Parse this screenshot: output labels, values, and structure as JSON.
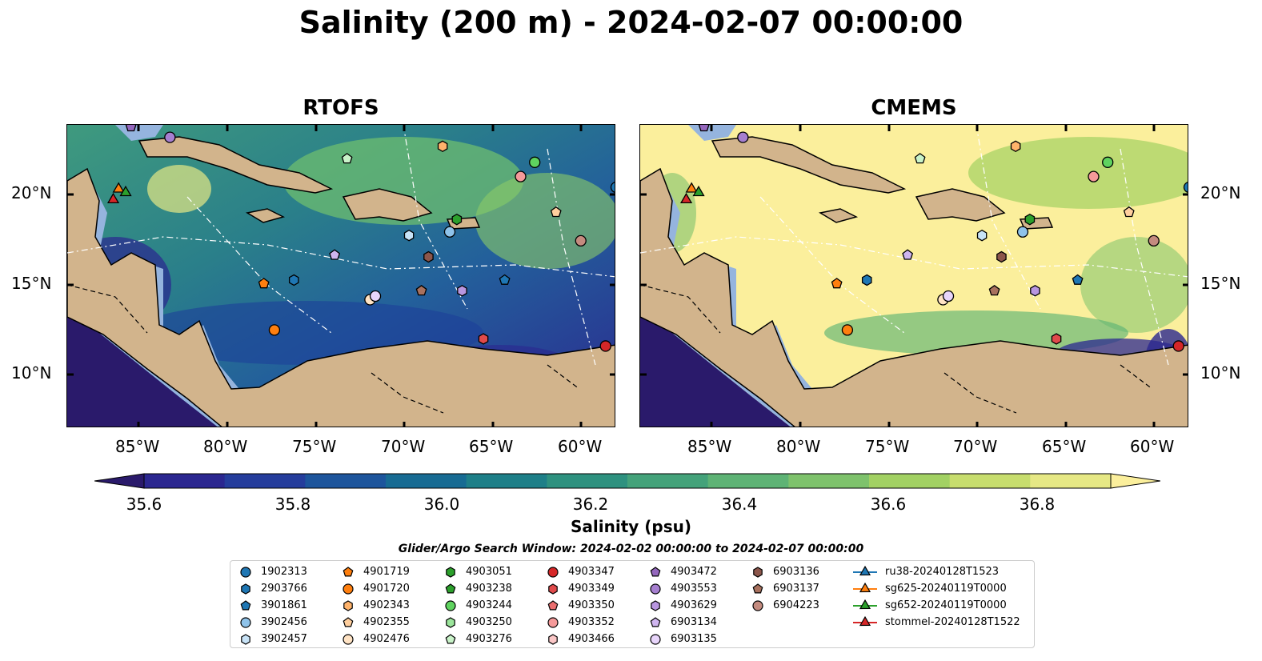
{
  "title": "Salinity (200 m) - 2024-02-07 00:00:00",
  "panels": [
    {
      "title": "RTOFS"
    },
    {
      "title": "CMEMS"
    }
  ],
  "x_ticks": [
    "85°W",
    "80°W",
    "75°W",
    "70°W",
    "65°W",
    "60°W"
  ],
  "y_ticks": [
    "20°N",
    "15°N",
    "10°N"
  ],
  "colorbar": {
    "label": "Salinity (psu)",
    "ticks": [
      "35.6",
      "35.8",
      "36.0",
      "36.2",
      "36.4",
      "36.6",
      "36.8"
    ],
    "colors": [
      "#2a1a6b",
      "#2b2790",
      "#253d9c",
      "#1d559c",
      "#176b93",
      "#1e7f88",
      "#2e917f",
      "#44a27a",
      "#5eb375",
      "#7ec26c",
      "#a2d163",
      "#c7dd6e",
      "#e6e885",
      "#fbef9c"
    ]
  },
  "search_window": "Glider/Argo Search Window: 2024-02-02 00:00:00 to 2024-02-07 00:00:00",
  "legend": [
    {
      "label": "1902313",
      "marker": "circle",
      "color": "#1f77b4"
    },
    {
      "label": "2903766",
      "marker": "hexagon",
      "color": "#1f77b4"
    },
    {
      "label": "3901861",
      "marker": "pentagon",
      "color": "#1f77b4"
    },
    {
      "label": "3902456",
      "marker": "circle",
      "color": "#8fc3ea"
    },
    {
      "label": "3902457",
      "marker": "hexagon",
      "color": "#c8e3f7"
    },
    {
      "label": "4901719",
      "marker": "pentagon",
      "color": "#ff7f0e"
    },
    {
      "label": "4901720",
      "marker": "circle",
      "color": "#ff7f0e"
    },
    {
      "label": "4902343",
      "marker": "hexagon",
      "color": "#ffb36b"
    },
    {
      "label": "4902355",
      "marker": "pentagon",
      "color": "#ffcf9e"
    },
    {
      "label": "4902476",
      "marker": "circle",
      "color": "#ffe3c4"
    },
    {
      "label": "4903051",
      "marker": "hexagon",
      "color": "#2ca02c"
    },
    {
      "label": "4903238",
      "marker": "pentagon",
      "color": "#2ca02c"
    },
    {
      "label": "4903244",
      "marker": "circle",
      "color": "#5fd35f"
    },
    {
      "label": "4903250",
      "marker": "hexagon",
      "color": "#9be59b"
    },
    {
      "label": "4903276",
      "marker": "pentagon",
      "color": "#c9f3c9"
    },
    {
      "label": "4903347",
      "marker": "circle",
      "color": "#d62728"
    },
    {
      "label": "4903349",
      "marker": "hexagon",
      "color": "#e04a4b"
    },
    {
      "label": "4903350",
      "marker": "pentagon",
      "color": "#ea6e6f"
    },
    {
      "label": "4903352",
      "marker": "circle",
      "color": "#f59a9a"
    },
    {
      "label": "4903466",
      "marker": "hexagon",
      "color": "#fbc7c7"
    },
    {
      "label": "4903472",
      "marker": "pentagon",
      "color": "#9467bd"
    },
    {
      "label": "4903553",
      "marker": "circle",
      "color": "#a67fd0"
    },
    {
      "label": "4903629",
      "marker": "hexagon",
      "color": "#b996e0"
    },
    {
      "label": "6903134",
      "marker": "pentagon",
      "color": "#cfb5ef"
    },
    {
      "label": "6903135",
      "marker": "circle",
      "color": "#e8d5fb"
    },
    {
      "label": "6903136",
      "marker": "hexagon",
      "color": "#8c564b"
    },
    {
      "label": "6903137",
      "marker": "pentagon",
      "color": "#a8715e"
    },
    {
      "label": "6904223",
      "marker": "circle",
      "color": "#c48b7f"
    },
    {
      "label": "ru38-20240128T1523",
      "marker": "triangle-line",
      "color": "#1f77b4"
    },
    {
      "label": "sg625-20240119T0000",
      "marker": "triangle-line",
      "color": "#ff7f0e"
    },
    {
      "label": "sg652-20240119T0000",
      "marker": "triangle-line",
      "color": "#2ca02c"
    },
    {
      "label": "stommel-20240128T1522",
      "marker": "triangle-line",
      "color": "#d62728"
    }
  ],
  "map_extent": {
    "lon": [
      -89,
      -58
    ],
    "lat": [
      7,
      24
    ]
  },
  "observations": [
    {
      "lon": -85.4,
      "lat": 23.9,
      "marker": "pentagon",
      "color": "#9467bd"
    },
    {
      "lon": -83.2,
      "lat": 23.3,
      "marker": "circle",
      "color": "#a67fd0"
    },
    {
      "lon": -73.2,
      "lat": 22.1,
      "marker": "pentagon",
      "color": "#c9f3c9"
    },
    {
      "lon": -67.8,
      "lat": 22.8,
      "marker": "hexagon",
      "color": "#ffb36b"
    },
    {
      "lon": -62.6,
      "lat": 21.9,
      "marker": "circle",
      "color": "#5fd35f"
    },
    {
      "lon": -63.4,
      "lat": 21.1,
      "marker": "circle",
      "color": "#f59a9a"
    },
    {
      "lon": -58.0,
      "lat": 20.5,
      "marker": "circle",
      "color": "#1f77b4"
    },
    {
      "lon": -61.4,
      "lat": 19.1,
      "marker": "pentagon",
      "color": "#ffcf9e"
    },
    {
      "lon": -67.0,
      "lat": 18.7,
      "marker": "hexagon",
      "color": "#2ca02c"
    },
    {
      "lon": -69.7,
      "lat": 17.8,
      "marker": "hexagon",
      "color": "#c8e3f7"
    },
    {
      "lon": -67.4,
      "lat": 18.0,
      "marker": "circle",
      "color": "#8fc3ea"
    },
    {
      "lon": -60.0,
      "lat": 17.5,
      "marker": "circle",
      "color": "#c48b7f"
    },
    {
      "lon": -73.9,
      "lat": 16.7,
      "marker": "pentagon",
      "color": "#cfb5ef"
    },
    {
      "lon": -68.6,
      "lat": 16.6,
      "marker": "hexagon",
      "color": "#8c564b"
    },
    {
      "lon": -77.9,
      "lat": 15.1,
      "marker": "pentagon",
      "color": "#ff7f0e"
    },
    {
      "lon": -76.2,
      "lat": 15.3,
      "marker": "hexagon",
      "color": "#1f77b4"
    },
    {
      "lon": -64.3,
      "lat": 15.3,
      "marker": "pentagon",
      "color": "#1f77b4"
    },
    {
      "lon": -69.0,
      "lat": 14.7,
      "marker": "pentagon",
      "color": "#a8715e"
    },
    {
      "lon": -66.7,
      "lat": 14.7,
      "marker": "hexagon",
      "color": "#b996e0"
    },
    {
      "lon": -71.9,
      "lat": 14.2,
      "marker": "circle",
      "color": "#ffe3c4"
    },
    {
      "lon": -71.6,
      "lat": 14.4,
      "marker": "circle",
      "color": "#e8d5fb"
    },
    {
      "lon": -77.3,
      "lat": 12.5,
      "marker": "circle",
      "color": "#ff7f0e"
    },
    {
      "lon": -65.5,
      "lat": 12.0,
      "marker": "hexagon",
      "color": "#e04a4b"
    },
    {
      "lon": -58.6,
      "lat": 11.6,
      "marker": "circle",
      "color": "#d62728"
    },
    {
      "lon": -86.1,
      "lat": 20.4,
      "marker": "triangle",
      "color": "#ff7f0e"
    },
    {
      "lon": -85.7,
      "lat": 20.2,
      "marker": "triangle",
      "color": "#2ca02c"
    },
    {
      "lon": -86.4,
      "lat": 19.8,
      "marker": "triangle",
      "color": "#d62728"
    }
  ]
}
